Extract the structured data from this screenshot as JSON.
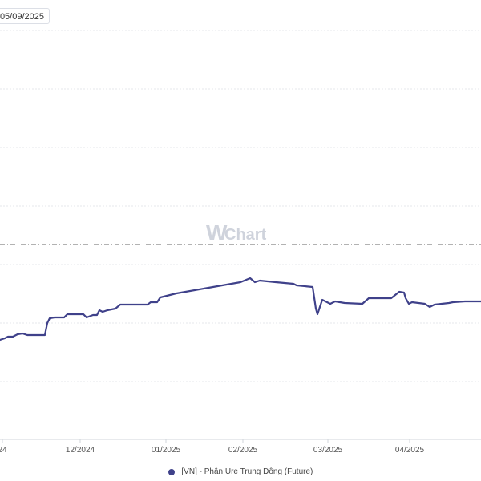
{
  "date_field": {
    "value": "05/09/2025"
  },
  "watermark": {
    "mark": "W",
    "text": "Chart"
  },
  "colors": {
    "line": "#3f418a",
    "grid": "#e5e7eb",
    "axis": "#d1d5db",
    "dash": "#666666"
  },
  "chart_data": {
    "type": "line",
    "x_tick_labels": [
      "24",
      "12/2024",
      "01/2025",
      "02/2025",
      "03/2025",
      "04/2025"
    ],
    "grid": true,
    "legend_position": "bottom-center",
    "series": [
      {
        "name": "[VN] - Phân Ure Trung Đông (Future)",
        "color": "#3f418a",
        "points": [
          [
            0,
            424
          ],
          [
            6,
            422
          ],
          [
            10,
            420
          ],
          [
            16,
            420
          ],
          [
            22,
            417
          ],
          [
            28,
            416
          ],
          [
            34,
            418
          ],
          [
            56,
            418
          ],
          [
            59,
            403
          ],
          [
            62,
            397
          ],
          [
            68,
            396
          ],
          [
            80,
            396
          ],
          [
            84,
            392
          ],
          [
            104,
            392
          ],
          [
            108,
            396
          ],
          [
            116,
            393
          ],
          [
            121,
            393
          ],
          [
            124,
            387
          ],
          [
            128,
            389
          ],
          [
            134,
            387
          ],
          [
            144,
            385
          ],
          [
            150,
            380
          ],
          [
            184,
            380
          ],
          [
            188,
            377
          ],
          [
            196,
            377
          ],
          [
            200,
            371
          ],
          [
            220,
            366
          ],
          [
            260,
            359
          ],
          [
            300,
            352
          ],
          [
            312,
            347
          ],
          [
            318,
            352
          ],
          [
            324,
            350
          ],
          [
            344,
            352
          ],
          [
            366,
            354
          ],
          [
            370,
            356
          ],
          [
            390,
            358
          ],
          [
            394,
            385
          ],
          [
            396,
            392
          ],
          [
            402,
            374
          ],
          [
            412,
            379
          ],
          [
            418,
            376
          ],
          [
            430,
            378
          ],
          [
            452,
            379
          ],
          [
            460,
            372
          ],
          [
            488,
            372
          ],
          [
            498,
            364
          ],
          [
            504,
            365
          ],
          [
            506,
            372
          ],
          [
            510,
            379
          ],
          [
            514,
            377
          ],
          [
            530,
            379
          ],
          [
            536,
            383
          ],
          [
            542,
            380
          ],
          [
            560,
            378
          ],
          [
            565,
            377
          ],
          [
            580,
            376
          ],
          [
            600,
            376
          ]
        ]
      }
    ]
  }
}
